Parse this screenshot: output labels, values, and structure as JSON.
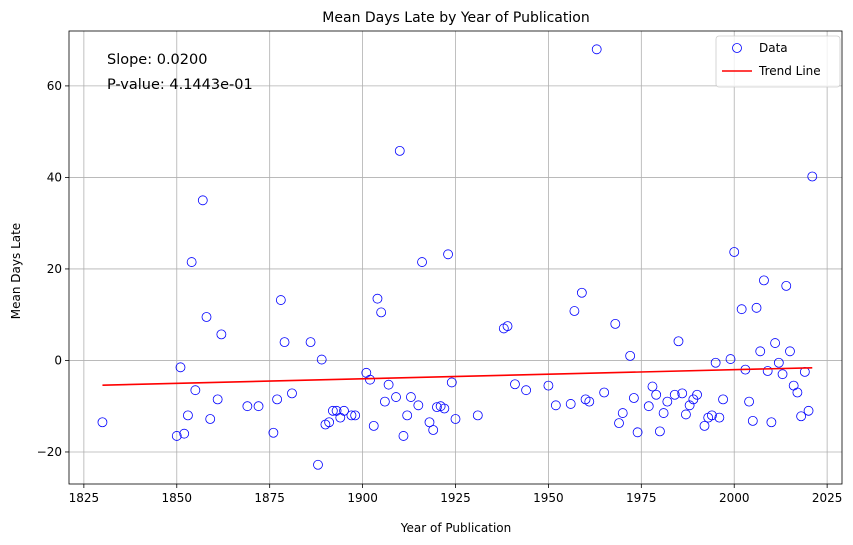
{
  "chart_data": {
    "type": "scatter",
    "title": "Mean Days Late by Year of Publication",
    "xlabel": "Year of Publication",
    "ylabel": "Mean Days Late",
    "xlim": [
      1821,
      2029
    ],
    "ylim": [
      -27,
      72
    ],
    "xticks": [
      1825,
      1850,
      1875,
      1900,
      1925,
      1950,
      1975,
      2000,
      2025
    ],
    "yticks": [
      -20,
      0,
      20,
      40,
      60
    ],
    "grid": true,
    "legend_position": "top-right",
    "annotations": [
      "Slope: 0.0200",
      "P-value: 4.1443e-01"
    ],
    "colors": {
      "points": "#0000ff",
      "trend": "#ff0000"
    },
    "series": [
      {
        "name": "Data",
        "kind": "scatter",
        "points": [
          [
            1830,
            -13.5
          ],
          [
            1850,
            -16.5
          ],
          [
            1851,
            -1.5
          ],
          [
            1852,
            -16
          ],
          [
            1853,
            -12
          ],
          [
            1854,
            21.5
          ],
          [
            1855,
            -6.5
          ],
          [
            1857,
            35
          ],
          [
            1858,
            9.5
          ],
          [
            1859,
            -12.8
          ],
          [
            1861,
            -8.5
          ],
          [
            1862,
            5.7
          ],
          [
            1869,
            -10
          ],
          [
            1872,
            -10
          ],
          [
            1876,
            -15.8
          ],
          [
            1877,
            -8.5
          ],
          [
            1878,
            13.2
          ],
          [
            1879,
            4
          ],
          [
            1881,
            -7.2
          ],
          [
            1886,
            4
          ],
          [
            1888,
            -22.8
          ],
          [
            1889,
            0.2
          ],
          [
            1890,
            -14
          ],
          [
            1891,
            -13.5
          ],
          [
            1892,
            -11
          ],
          [
            1893,
            -11
          ],
          [
            1894,
            -12.5
          ],
          [
            1895,
            -11
          ],
          [
            1897,
            -12
          ],
          [
            1898,
            -12
          ],
          [
            1901,
            -2.7
          ],
          [
            1902,
            -4.2
          ],
          [
            1903,
            -14.3
          ],
          [
            1904,
            13.5
          ],
          [
            1905,
            10.5
          ],
          [
            1906,
            -9
          ],
          [
            1907,
            -5.3
          ],
          [
            1909,
            -8
          ],
          [
            1910,
            45.8
          ],
          [
            1911,
            -16.5
          ],
          [
            1912,
            -12
          ],
          [
            1913,
            -8
          ],
          [
            1915,
            -9.8
          ],
          [
            1916,
            21.5
          ],
          [
            1918,
            -13.5
          ],
          [
            1919,
            -15.2
          ],
          [
            1920,
            -10.2
          ],
          [
            1921,
            -10
          ],
          [
            1922,
            -10.5
          ],
          [
            1923,
            23.2
          ],
          [
            1924,
            -4.8
          ],
          [
            1925,
            -12.8
          ],
          [
            1931,
            -12
          ],
          [
            1938,
            7
          ],
          [
            1939,
            7.5
          ],
          [
            1941,
            -5.2
          ],
          [
            1944,
            -6.5
          ],
          [
            1950,
            -5.5
          ],
          [
            1952,
            -9.8
          ],
          [
            1956,
            -9.5
          ],
          [
            1957,
            10.8
          ],
          [
            1959,
            14.8
          ],
          [
            1960,
            -8.5
          ],
          [
            1961,
            -9
          ],
          [
            1963,
            68
          ],
          [
            1965,
            -7
          ],
          [
            1968,
            8
          ],
          [
            1969,
            -13.7
          ],
          [
            1970,
            -11.5
          ],
          [
            1972,
            1
          ],
          [
            1973,
            -8.2
          ],
          [
            1974,
            -15.7
          ],
          [
            1977,
            -10
          ],
          [
            1978,
            -5.7
          ],
          [
            1979,
            -7.5
          ],
          [
            1980,
            -15.5
          ],
          [
            1981,
            -11.5
          ],
          [
            1982,
            -9
          ],
          [
            1984,
            -7.5
          ],
          [
            1985,
            4.2
          ],
          [
            1986,
            -7.2
          ],
          [
            1987,
            -11.8
          ],
          [
            1988,
            -9.8
          ],
          [
            1989,
            -8.5
          ],
          [
            1990,
            -7.5
          ],
          [
            1992,
            -14.3
          ],
          [
            1993,
            -12.5
          ],
          [
            1994,
            -12
          ],
          [
            1995,
            -0.5
          ],
          [
            1996,
            -12.5
          ],
          [
            1997,
            -8.5
          ],
          [
            1999,
            0.3
          ],
          [
            2000,
            23.7
          ],
          [
            2002,
            11.2
          ],
          [
            2003,
            -2
          ],
          [
            2004,
            -9
          ],
          [
            2005,
            -13.2
          ],
          [
            2006,
            11.5
          ],
          [
            2007,
            2
          ],
          [
            2008,
            17.5
          ],
          [
            2009,
            -2.3
          ],
          [
            2010,
            -13.5
          ],
          [
            2011,
            3.8
          ],
          [
            2012,
            -0.5
          ],
          [
            2013,
            -3
          ],
          [
            2014,
            16.3
          ],
          [
            2015,
            2
          ],
          [
            2016,
            -5.5
          ],
          [
            2017,
            -7
          ],
          [
            2018,
            -12.2
          ],
          [
            2019,
            -2.5
          ],
          [
            2020,
            -11
          ],
          [
            2021,
            40.2
          ]
        ]
      },
      {
        "name": "Trend Line",
        "kind": "line",
        "x": [
          1830,
          2021
        ],
        "y": [
          -5.4,
          -1.6
        ]
      }
    ]
  }
}
